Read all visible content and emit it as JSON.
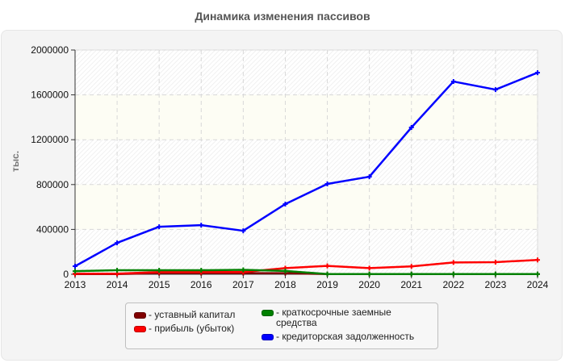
{
  "header": {
    "title": "Динамика изменения пассивов"
  },
  "chart_data": {
    "type": "line",
    "title": "Динамика изменения пассивов",
    "xlabel": "",
    "ylabel": "тыс.",
    "ylim": [
      0,
      2000000
    ],
    "yticks": [
      "0",
      "400000",
      "800000",
      "1200000",
      "1600000",
      "2000000"
    ],
    "x": [
      "2013",
      "2014",
      "2015",
      "2016",
      "2017",
      "2018",
      "2019",
      "2020",
      "2021",
      "2022",
      "2023",
      "2024"
    ],
    "grid": true,
    "legend_position": "bottom",
    "series": [
      {
        "name": "уставный капитал",
        "color": "#800000",
        "values": [
          2000,
          2000,
          10000,
          10000,
          10000,
          10000,
          2000,
          2000,
          2000,
          2000,
          2000,
          2000
        ]
      },
      {
        "name": "прибыль (убыток)",
        "color": "#ff0000",
        "values": [
          5000,
          5000,
          20000,
          20000,
          20000,
          55000,
          75000,
          55000,
          70000,
          105000,
          108000,
          128000
        ]
      },
      {
        "name": "краткосрочные заемные средства",
        "color": "#008000",
        "values": [
          28000,
          36000,
          36000,
          36000,
          40000,
          30000,
          2000,
          2000,
          2000,
          2000,
          2000,
          2000
        ]
      },
      {
        "name": "кредиторская задолженность",
        "color": "#0000ff",
        "values": [
          72000,
          280000,
          424000,
          438000,
          388000,
          626000,
          806000,
          870000,
          1309000,
          1719000,
          1647000,
          1798000
        ]
      }
    ]
  },
  "legend": {
    "items": [
      {
        "label": "- уставный капитал",
        "color": "#800000"
      },
      {
        "label": "- прибыль (убыток)",
        "color": "#ff0000"
      },
      {
        "label": "- краткосрочные заемные\nсредства",
        "color": "#008000"
      },
      {
        "label": "- кредиторская задолженность",
        "color": "#0000ff"
      }
    ]
  }
}
